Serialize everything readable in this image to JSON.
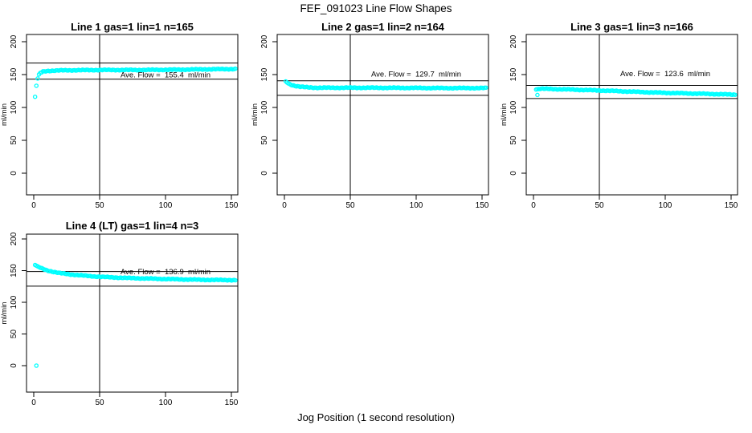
{
  "chart_data": {
    "type": "scatter",
    "suptitle": "FEF_091023  Line Flow Shapes",
    "xlabel": "Jog Position (1 second resolution)",
    "ylabel": "ml/min",
    "x_ticks": [
      0,
      50,
      100,
      150
    ],
    "y_ticks": [
      0,
      50,
      100,
      150,
      200
    ],
    "xlim": [
      0,
      155
    ],
    "ylim": [
      0,
      200
    ],
    "grid": false,
    "point_color": "#00ffff",
    "line_color": "#000000",
    "panels": [
      {
        "title": "Line 1 gas=1 lin=1 n=165",
        "annotation": "Ave. Flow =  155.4  ml/min",
        "ave_flow": 155.4,
        "n": 165,
        "gas": 1,
        "lin": 1,
        "hlines": [
          167.5,
          143.0
        ],
        "vline_x": 50,
        "x_start": 1,
        "x_end": 153,
        "ann": {
          "x": 100,
          "y": 150
        },
        "keypoints": [
          [
            1,
            116
          ],
          [
            2,
            133
          ],
          [
            3,
            144
          ],
          [
            4,
            150
          ],
          [
            5,
            152.5
          ],
          [
            7,
            154.5
          ],
          [
            10,
            155.5
          ],
          [
            15,
            156
          ],
          [
            25,
            156.5
          ],
          [
            50,
            157
          ],
          [
            80,
            157
          ],
          [
            110,
            157.5
          ],
          [
            130,
            158
          ],
          [
            153,
            158.5
          ]
        ],
        "isolated_points": []
      },
      {
        "title": "Line 2 gas=1 lin=2 n=164",
        "annotation": "Ave. Flow =  129.7  ml/min",
        "ave_flow": 129.7,
        "n": 164,
        "gas": 1,
        "lin": 2,
        "hlines": [
          140.5,
          118.5
        ],
        "vline_x": 50,
        "x_start": 1,
        "x_end": 153,
        "ann": {
          "x": 100,
          "y": 151
        },
        "keypoints": [
          [
            1,
            139.5
          ],
          [
            2,
            138
          ],
          [
            3,
            136.5
          ],
          [
            5,
            134.5
          ],
          [
            8,
            133
          ],
          [
            12,
            131.5
          ],
          [
            18,
            130.5
          ],
          [
            25,
            130
          ],
          [
            60,
            130
          ],
          [
            90,
            129.8
          ],
          [
            120,
            129.5
          ],
          [
            153,
            129.5
          ]
        ],
        "isolated_points": []
      },
      {
        "title": "Line 3 gas=1 lin=3 n=166",
        "annotation": "Ave. Flow =  123.6  ml/min",
        "ave_flow": 123.6,
        "n": 166,
        "gas": 1,
        "lin": 3,
        "hlines": [
          133.5,
          113.5
        ],
        "vline_x": 50,
        "x_start": 2,
        "x_end": 153,
        "ann": {
          "x": 100,
          "y": 152
        },
        "keypoints": [
          [
            2,
            127.5
          ],
          [
            6,
            128.5
          ],
          [
            15,
            128
          ],
          [
            25,
            127.5
          ],
          [
            40,
            126.5
          ],
          [
            55,
            125.5
          ],
          [
            75,
            124
          ],
          [
            95,
            122.5
          ],
          [
            115,
            121.5
          ],
          [
            135,
            120.5
          ],
          [
            153,
            119.5
          ]
        ],
        "isolated_points": [
          [
            3,
            119
          ]
        ]
      },
      {
        "title": "Line 4 (LT) gas=1 lin=4 n=3",
        "annotation": "Ave. Flow =  136.9  ml/min",
        "ave_flow": 136.9,
        "n": 3,
        "gas": 1,
        "lin": 4,
        "hlines": [
          148.5,
          125.5
        ],
        "vline_x": 50,
        "x_start": 1,
        "x_end": 153,
        "ann": {
          "x": 100,
          "y": 149
        },
        "keypoints": [
          [
            1,
            159
          ],
          [
            3,
            156.5
          ],
          [
            6,
            153.5
          ],
          [
            10,
            150.5
          ],
          [
            15,
            148
          ],
          [
            20,
            146
          ],
          [
            28,
            144
          ],
          [
            36,
            142.5
          ],
          [
            45,
            141
          ],
          [
            55,
            139.8
          ],
          [
            70,
            138.5
          ],
          [
            90,
            137.3
          ],
          [
            110,
            136.3
          ],
          [
            130,
            135.5
          ],
          [
            153,
            135
          ]
        ],
        "isolated_points": [
          [
            2,
            0
          ]
        ]
      }
    ]
  }
}
